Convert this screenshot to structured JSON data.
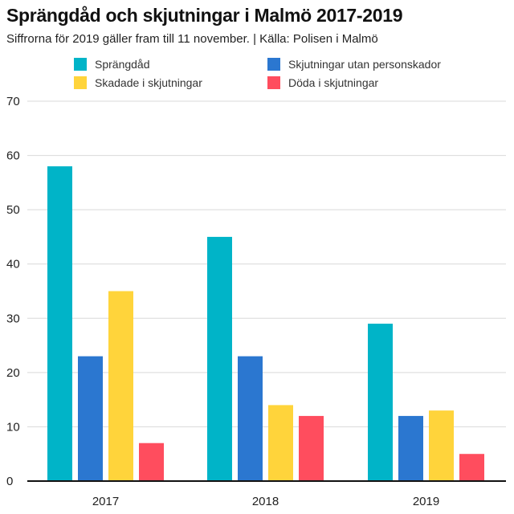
{
  "header": {
    "title": "Sprängdåd och skjutningar i Malmö 2017-2019",
    "subtitle": "Siffrorna för 2019 gäller fram till 11 november. | Källa: Polisen i Malmö"
  },
  "chart_data": {
    "type": "bar",
    "title": "Sprängdåd och skjutningar i Malmö 2017-2019",
    "subtitle": "Siffrorna för 2019 gäller fram till 11 november. | Källa: Polisen i Malmö",
    "categories": [
      "2017",
      "2018",
      "2019"
    ],
    "series": [
      {
        "name": "Sprängdåd",
        "color": "#00b4c8",
        "values": [
          58,
          45,
          29
        ]
      },
      {
        "name": "Skjutningar utan personskador",
        "color": "#2b77d0",
        "values": [
          23,
          23,
          12
        ]
      },
      {
        "name": "Skadade i skjutningar",
        "color": "#ffd43b",
        "values": [
          35,
          14,
          13
        ]
      },
      {
        "name": "Döda i skjutningar",
        "color": "#ff4d5e",
        "values": [
          7,
          12,
          5
        ]
      }
    ],
    "ylim": [
      0,
      70
    ],
    "yticks": [
      0,
      10,
      20,
      30,
      40,
      50,
      60,
      70
    ],
    "xlabel": "",
    "ylabel": "",
    "grid": true,
    "legend_position": "top"
  }
}
